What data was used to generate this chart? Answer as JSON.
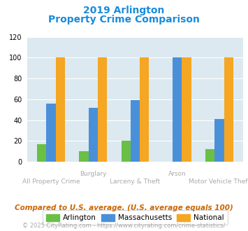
{
  "title_line1": "2019 Arlington",
  "title_line2": "Property Crime Comparison",
  "categories": [
    "All Property Crime",
    "Burglary",
    "Larceny & Theft",
    "Arson",
    "Motor Vehicle Theft"
  ],
  "cat_top_labels": [
    "",
    "Burglary",
    "",
    "Arson",
    ""
  ],
  "cat_bot_labels": [
    "All Property Crime",
    "",
    "Larceny & Theft",
    "",
    "Motor Vehicle Theft"
  ],
  "arlington": [
    17,
    10,
    20,
    0,
    12
  ],
  "massachusetts": [
    56,
    52,
    59,
    100,
    41
  ],
  "national": [
    100,
    100,
    100,
    100,
    100
  ],
  "arlington_color": "#6abf45",
  "massachusetts_color": "#4a90d9",
  "national_color": "#f5a623",
  "background_color": "#dce9f0",
  "title_color": "#1a8cdb",
  "ylim": [
    0,
    120
  ],
  "yticks": [
    0,
    20,
    40,
    60,
    80,
    100,
    120
  ],
  "legend_labels": [
    "Arlington",
    "Massachusetts",
    "National"
  ],
  "footnote1": "Compared to U.S. average. (U.S. average equals 100)",
  "footnote2": "© 2025 CityRating.com - https://www.cityrating.com/crime-statistics/",
  "footnote1_color": "#cc6600",
  "footnote2_color": "#aaaaaa",
  "xlabel_color": "#aaaaaa",
  "grid_color": "#ffffff",
  "bar_width": 0.22
}
